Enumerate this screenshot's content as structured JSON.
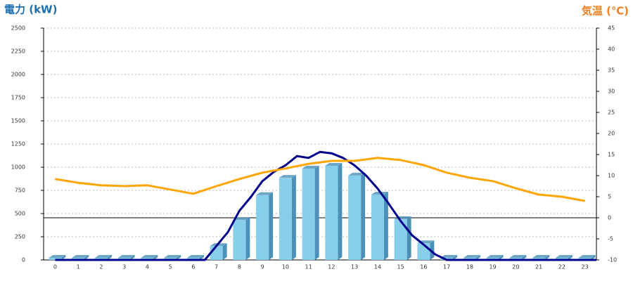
{
  "chart_data": {
    "type": "bar",
    "y_label": "電力 (kW)",
    "y2_label": "気温 (℃)",
    "categories": [
      "0",
      "1",
      "2",
      "3",
      "4",
      "5",
      "6",
      "7",
      "8",
      "9",
      "10",
      "11",
      "12",
      "13",
      "14",
      "15",
      "16",
      "17",
      "18",
      "19",
      "20",
      "21",
      "22",
      "23"
    ],
    "values": [
      0,
      0,
      0,
      0,
      0,
      0,
      0,
      150,
      430,
      700,
      885,
      985,
      1015,
      910,
      705,
      440,
      180,
      0,
      0,
      0,
      0,
      0,
      0,
      0
    ],
    "color": "#87ceeb",
    "side_color": "#4a90b8",
    "lines": [
      {
        "color": "#00008b",
        "x": [
          0,
          0.5,
          1,
          1.5,
          2,
          2.5,
          3,
          3.5,
          4,
          4.5,
          5,
          5.5,
          6,
          6.5,
          7,
          7.5,
          8,
          8.5,
          9,
          9.5,
          10,
          10.5,
          11,
          11.5,
          12,
          12.5,
          13,
          13.5,
          14,
          14.5,
          15,
          15.5,
          16,
          16.5,
          17,
          17.5,
          18,
          18.5,
          19,
          19.5,
          20,
          20.5,
          21,
          21.5,
          22,
          22.5,
          23,
          23.5
        ],
        "values": [
          0,
          0,
          0,
          0,
          0,
          0,
          0,
          0,
          0,
          0,
          0,
          0,
          0,
          0,
          150,
          300,
          530,
          680,
          850,
          950,
          1020,
          1120,
          1100,
          1165,
          1150,
          1100,
          1020,
          910,
          770,
          600,
          420,
          265,
          165,
          60,
          0,
          0,
          0,
          0,
          0,
          0,
          0,
          0,
          0,
          0,
          0,
          0,
          0,
          0
        ]
      },
      {
        "color": "#ffa500",
        "axis": "y2",
        "values": [
          9.2,
          8.3,
          7.7,
          7.5,
          7.7,
          6.7,
          5.7,
          7.5,
          9.2,
          10.7,
          11.7,
          12.8,
          13.5,
          13.5,
          14.2,
          13.7,
          12.5,
          10.7,
          9.5,
          8.7,
          7,
          5.5,
          5,
          4
        ]
      }
    ],
    "ylim": [
      0,
      2500
    ],
    "yticks": [
      0,
      250,
      500,
      750,
      1000,
      1250,
      1500,
      1750,
      2000,
      2250,
      2500
    ],
    "y2lim": [
      -10,
      45
    ],
    "y2ticks": [
      -10,
      -5,
      0,
      5,
      10,
      15,
      20,
      25,
      30,
      35,
      40,
      45
    ],
    "grid": true
  }
}
